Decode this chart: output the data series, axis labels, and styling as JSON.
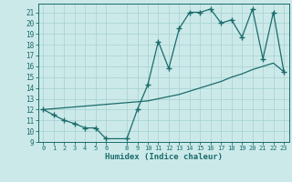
{
  "xlabel": "Humidex (Indice chaleur)",
  "ylabel": "",
  "bg_color": "#cce9e9",
  "grid_color": "#aad4d4",
  "line_color": "#1a6b6b",
  "xlim": [
    -0.5,
    23.5
  ],
  "ylim": [
    9,
    21.8
  ],
  "yticks": [
    9,
    10,
    11,
    12,
    13,
    14,
    15,
    16,
    17,
    18,
    19,
    20,
    21
  ],
  "xticks": [
    0,
    1,
    2,
    3,
    4,
    5,
    6,
    8,
    9,
    10,
    11,
    12,
    13,
    14,
    15,
    16,
    17,
    18,
    19,
    20,
    21,
    22,
    23
  ],
  "line1_x": [
    0,
    1,
    2,
    3,
    4,
    5,
    6,
    8,
    9,
    10,
    11,
    12,
    13,
    14,
    15,
    16,
    17,
    18,
    19,
    20,
    21,
    22,
    23
  ],
  "line1_y": [
    12.0,
    11.5,
    11.0,
    10.7,
    10.3,
    10.3,
    9.3,
    9.3,
    12.0,
    14.3,
    18.3,
    15.8,
    19.5,
    21.0,
    21.0,
    21.3,
    20.0,
    20.3,
    18.7,
    21.3,
    16.7,
    21.0,
    15.5
  ],
  "line2_x": [
    0,
    10,
    11,
    12,
    13,
    14,
    15,
    16,
    17,
    18,
    19,
    20,
    21,
    22,
    23
  ],
  "line2_y": [
    12.0,
    12.8,
    13.0,
    13.2,
    13.4,
    13.7,
    14.0,
    14.3,
    14.6,
    15.0,
    15.3,
    15.7,
    16.0,
    16.3,
    15.5
  ],
  "marker": "+",
  "markersize": 4,
  "linewidth": 0.9
}
